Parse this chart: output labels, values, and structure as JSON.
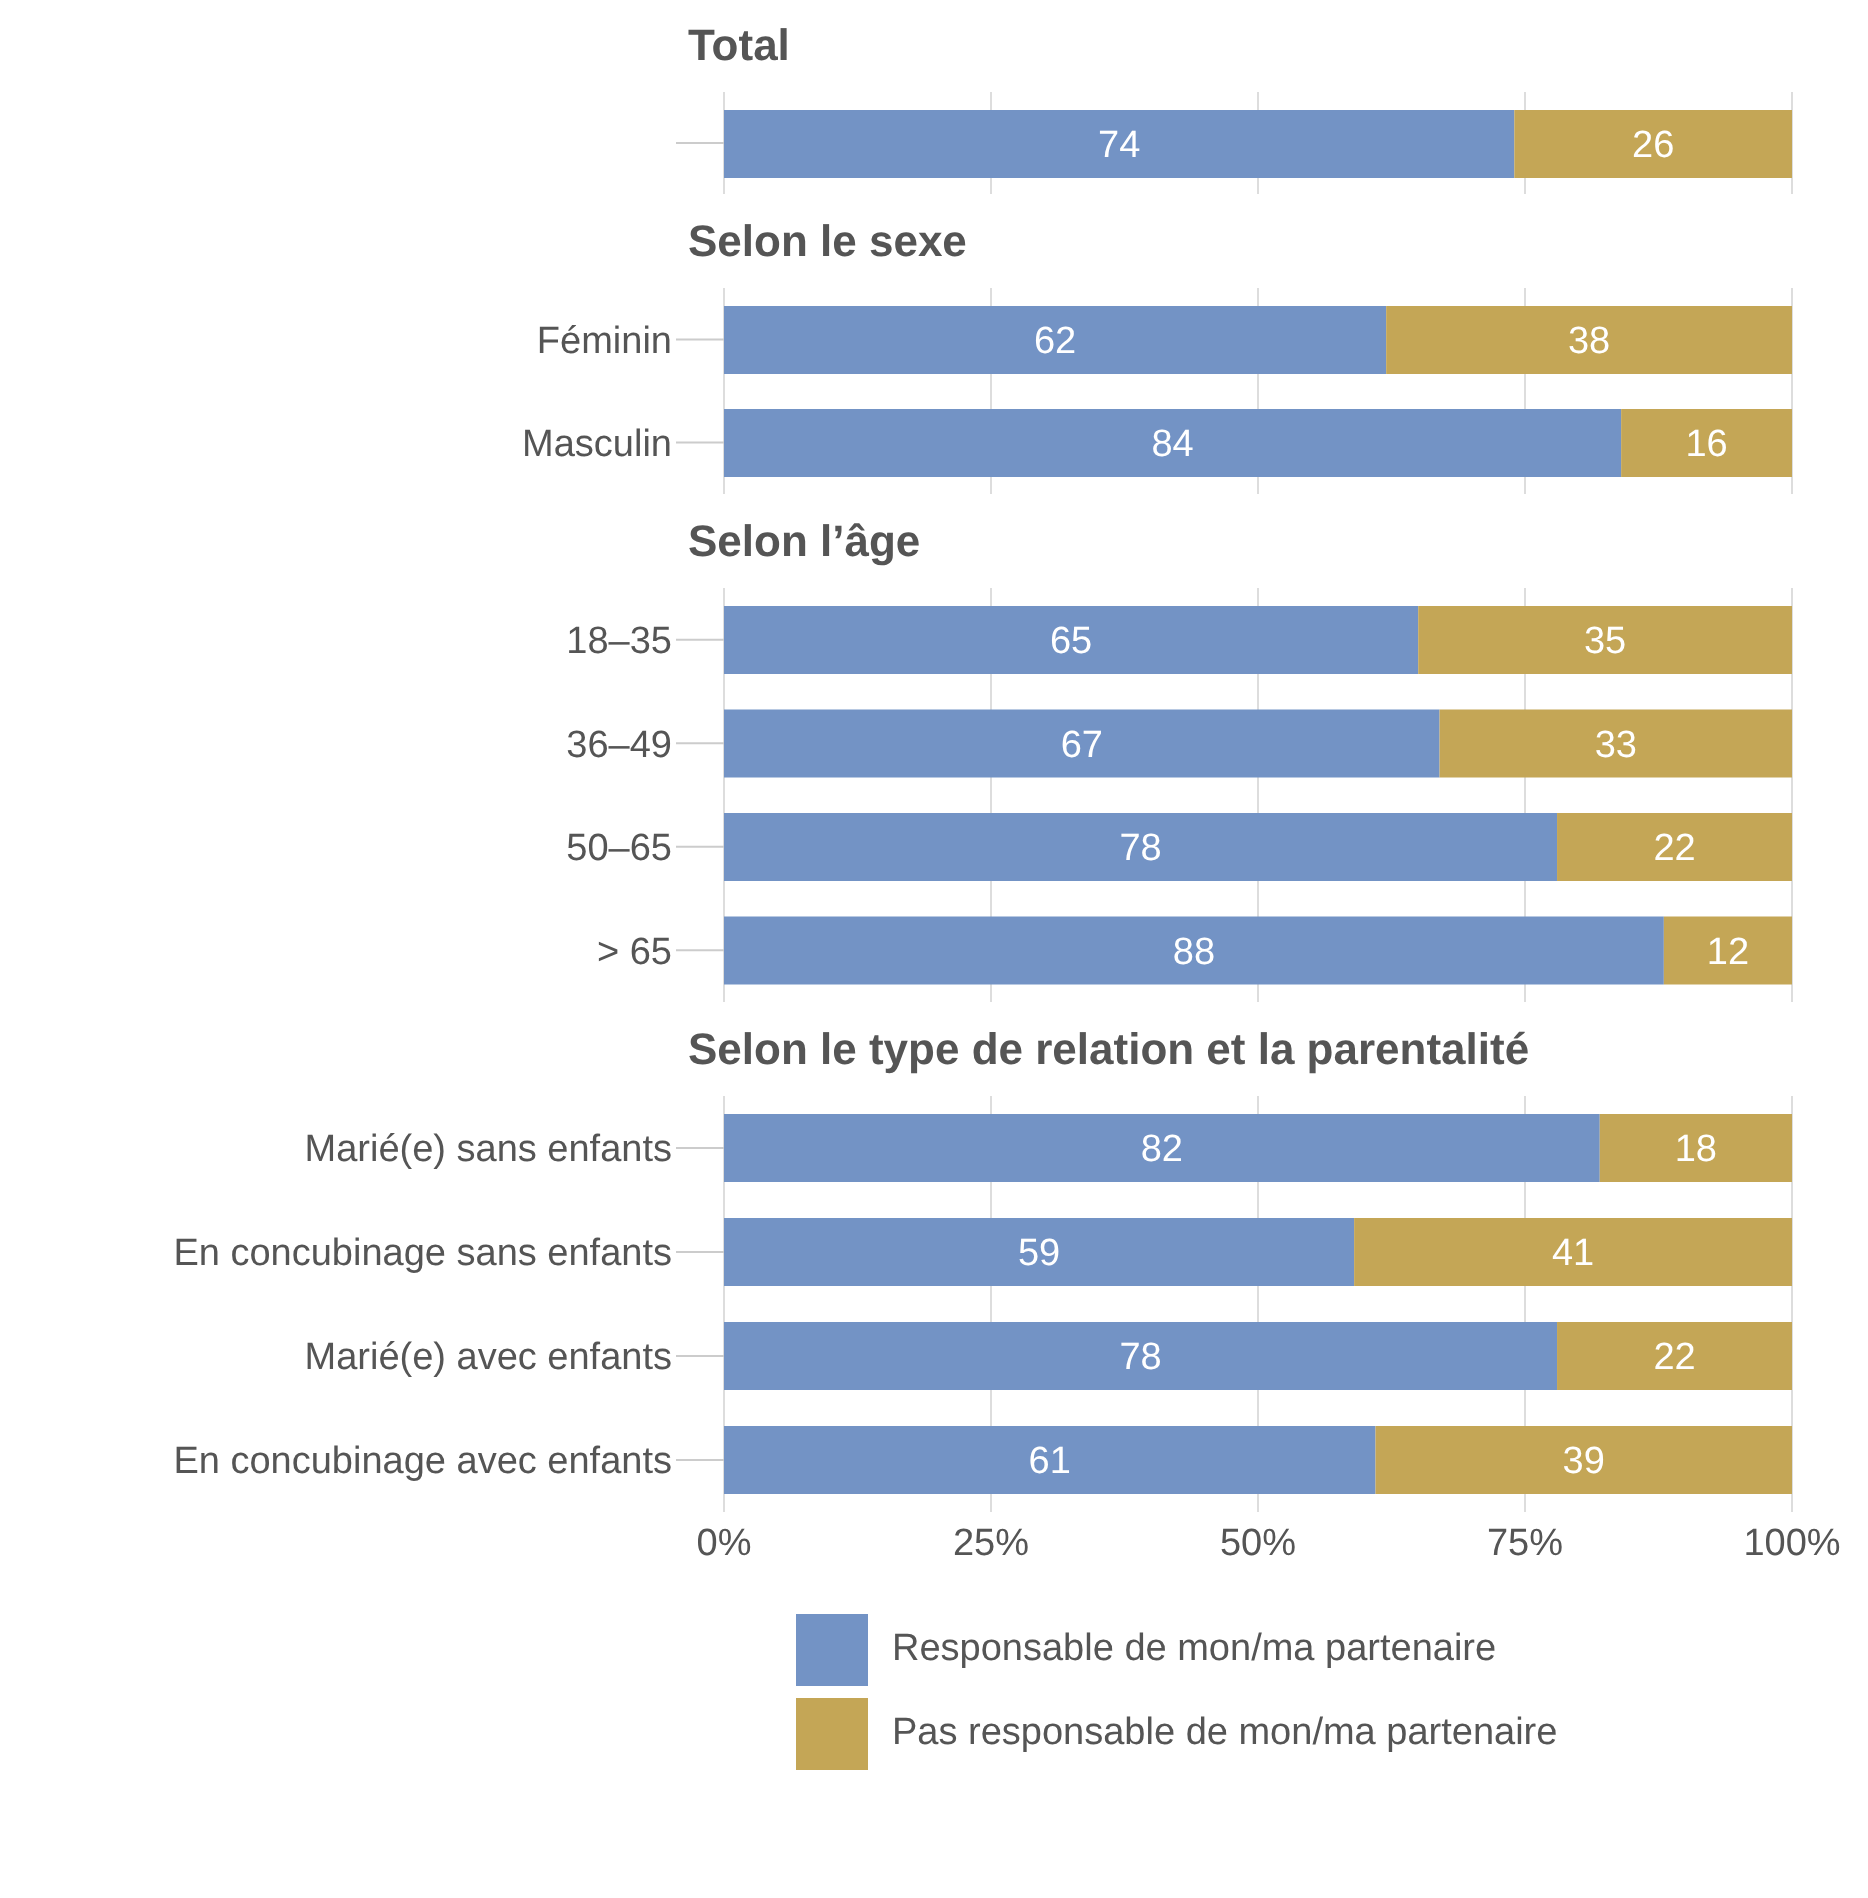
{
  "chart_data": [
    {
      "type": "bar",
      "orientation": "horizontal",
      "stacked": true,
      "title": "Total",
      "categories": [
        null
      ],
      "series": [
        {
          "name": "Responsable de mon/ma partenaire",
          "color": "#7393c5",
          "values": [
            74
          ]
        },
        {
          "name": "Pas responsable de mon/ma partenaire",
          "color": "#c4a656",
          "values": [
            26
          ]
        }
      ],
      "xlim": [
        0,
        100
      ],
      "xticks": [
        0,
        25,
        50,
        75,
        100
      ],
      "tick_labels": "y",
      "grid": "x",
      "data_labels": true,
      "legend": "bottom"
    },
    {
      "type": "bar",
      "orientation": "horizontal",
      "stacked": true,
      "title": "Selon le sexe",
      "categories": [
        "Féminin",
        "Masculin"
      ],
      "series": [
        {
          "color": "#7393c5",
          "values": [
            62,
            84
          ]
        },
        {
          "color": "#c4a656",
          "values": [
            38,
            16
          ]
        }
      ],
      "xlim": [
        0,
        100
      ],
      "xticks": [
        0,
        25,
        50,
        75,
        100
      ],
      "tick_labels": "y",
      "grid": "x",
      "data_labels": true
    },
    {
      "type": "bar",
      "orientation": "horizontal",
      "stacked": true,
      "title": "Selon l’âge",
      "categories": [
        "18–35",
        "36–49",
        "50–65",
        "> 65"
      ],
      "series": [
        {
          "color": "#7393c5",
          "values": [
            65,
            67,
            78,
            88
          ]
        },
        {
          "color": "#c4a656",
          "values": [
            35,
            33,
            22,
            12
          ]
        }
      ],
      "xlim": [
        0,
        100
      ],
      "xticks": [
        0,
        25,
        50,
        75,
        100
      ],
      "tick_labels": "y",
      "grid": "x",
      "data_labels": true
    },
    {
      "type": "bar",
      "orientation": "horizontal",
      "stacked": true,
      "title": "Selon le type de relation et la parentalité",
      "categories": [
        "Marié(e) sans enfants",
        "En concubinage sans enfants",
        "Marié(e) avec enfants",
        "En concubinage avec enfants"
      ],
      "series": [
        {
          "color": "#7393c5",
          "values": [
            82,
            59,
            78,
            61
          ]
        },
        {
          "color": "#c4a656",
          "values": [
            18,
            41,
            22,
            39
          ]
        }
      ],
      "xlim": [
        0,
        100
      ],
      "xticks": [
        {
          "value": 0,
          "label": "0%"
        },
        {
          "value": 25,
          "label": "25%"
        },
        {
          "value": 50,
          "label": "50%"
        },
        {
          "value": 75,
          "label": "75%"
        },
        {
          "value": 100,
          "label": "100%"
        }
      ],
      "grid": "x",
      "data_labels": true
    }
  ]
}
